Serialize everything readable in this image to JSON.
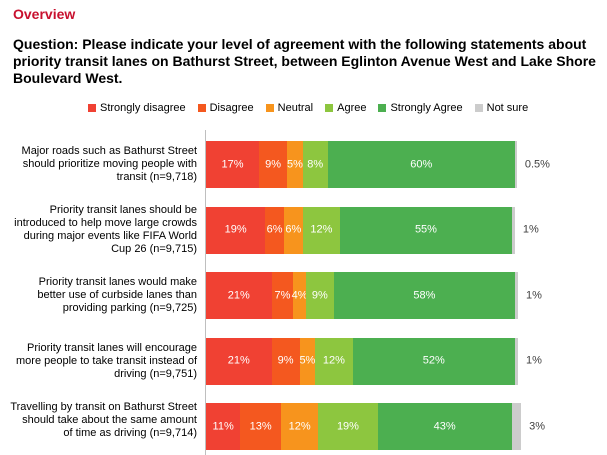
{
  "header": {
    "section_title": "Overview",
    "question": "Question: Please indicate your level of agreement with the following statements about priority transit lanes on Bathurst Street, between Eglinton Avenue West and Lake Shore Boulevard West."
  },
  "chart_data": {
    "type": "bar",
    "orientation": "horizontal",
    "stacked": true,
    "legend_position": "top",
    "grid": false,
    "xlim": [
      0,
      100
    ],
    "categories": [
      "Major roads such as Bathurst Street should prioritize moving people with transit (n=9,718)",
      "Priority transit lanes should be introduced to help move large crowds during major events like FIFA World Cup 26 (n=9,715)",
      "Priority transit lanes would make better use of curbside lanes than providing parking (n=9,725)",
      "Priority transit lanes will encourage more people to take transit instead of driving (n=9,751)",
      "Travelling by transit on Bathurst Street should take about the same amount of time as driving (n=9,714)"
    ],
    "series": [
      {
        "name": "Strongly disagree",
        "color": "#f04133",
        "values": [
          17,
          19,
          21,
          21,
          11
        ],
        "labels": [
          "17%",
          "19%",
          "21%",
          "21%",
          "11%"
        ]
      },
      {
        "name": "Disagree",
        "color": "#f4581f",
        "values": [
          9,
          6,
          7,
          9,
          13
        ],
        "labels": [
          "9%",
          "6%",
          "7%",
          "9%",
          "13%"
        ]
      },
      {
        "name": "Neutral",
        "color": "#f7941d",
        "values": [
          5,
          6,
          4,
          5,
          12
        ],
        "labels": [
          "5%",
          "6%",
          "4%",
          "5%",
          "12%"
        ]
      },
      {
        "name": "Agree",
        "color": "#8dc63f",
        "values": [
          8,
          12,
          9,
          12,
          19
        ],
        "labels": [
          "8%",
          "12%",
          "9%",
          "12%",
          "19%"
        ]
      },
      {
        "name": "Strongly Agree",
        "color": "#4caf50",
        "values": [
          60,
          55,
          58,
          52,
          43
        ],
        "labels": [
          "60%",
          "55%",
          "58%",
          "52%",
          "43%"
        ]
      },
      {
        "name": "Not sure",
        "color": "#cccccc",
        "values": [
          0.5,
          1,
          1,
          1,
          3
        ],
        "labels": [
          "0.5%",
          "1%",
          "1%",
          "1%",
          "3%"
        ]
      }
    ]
  }
}
